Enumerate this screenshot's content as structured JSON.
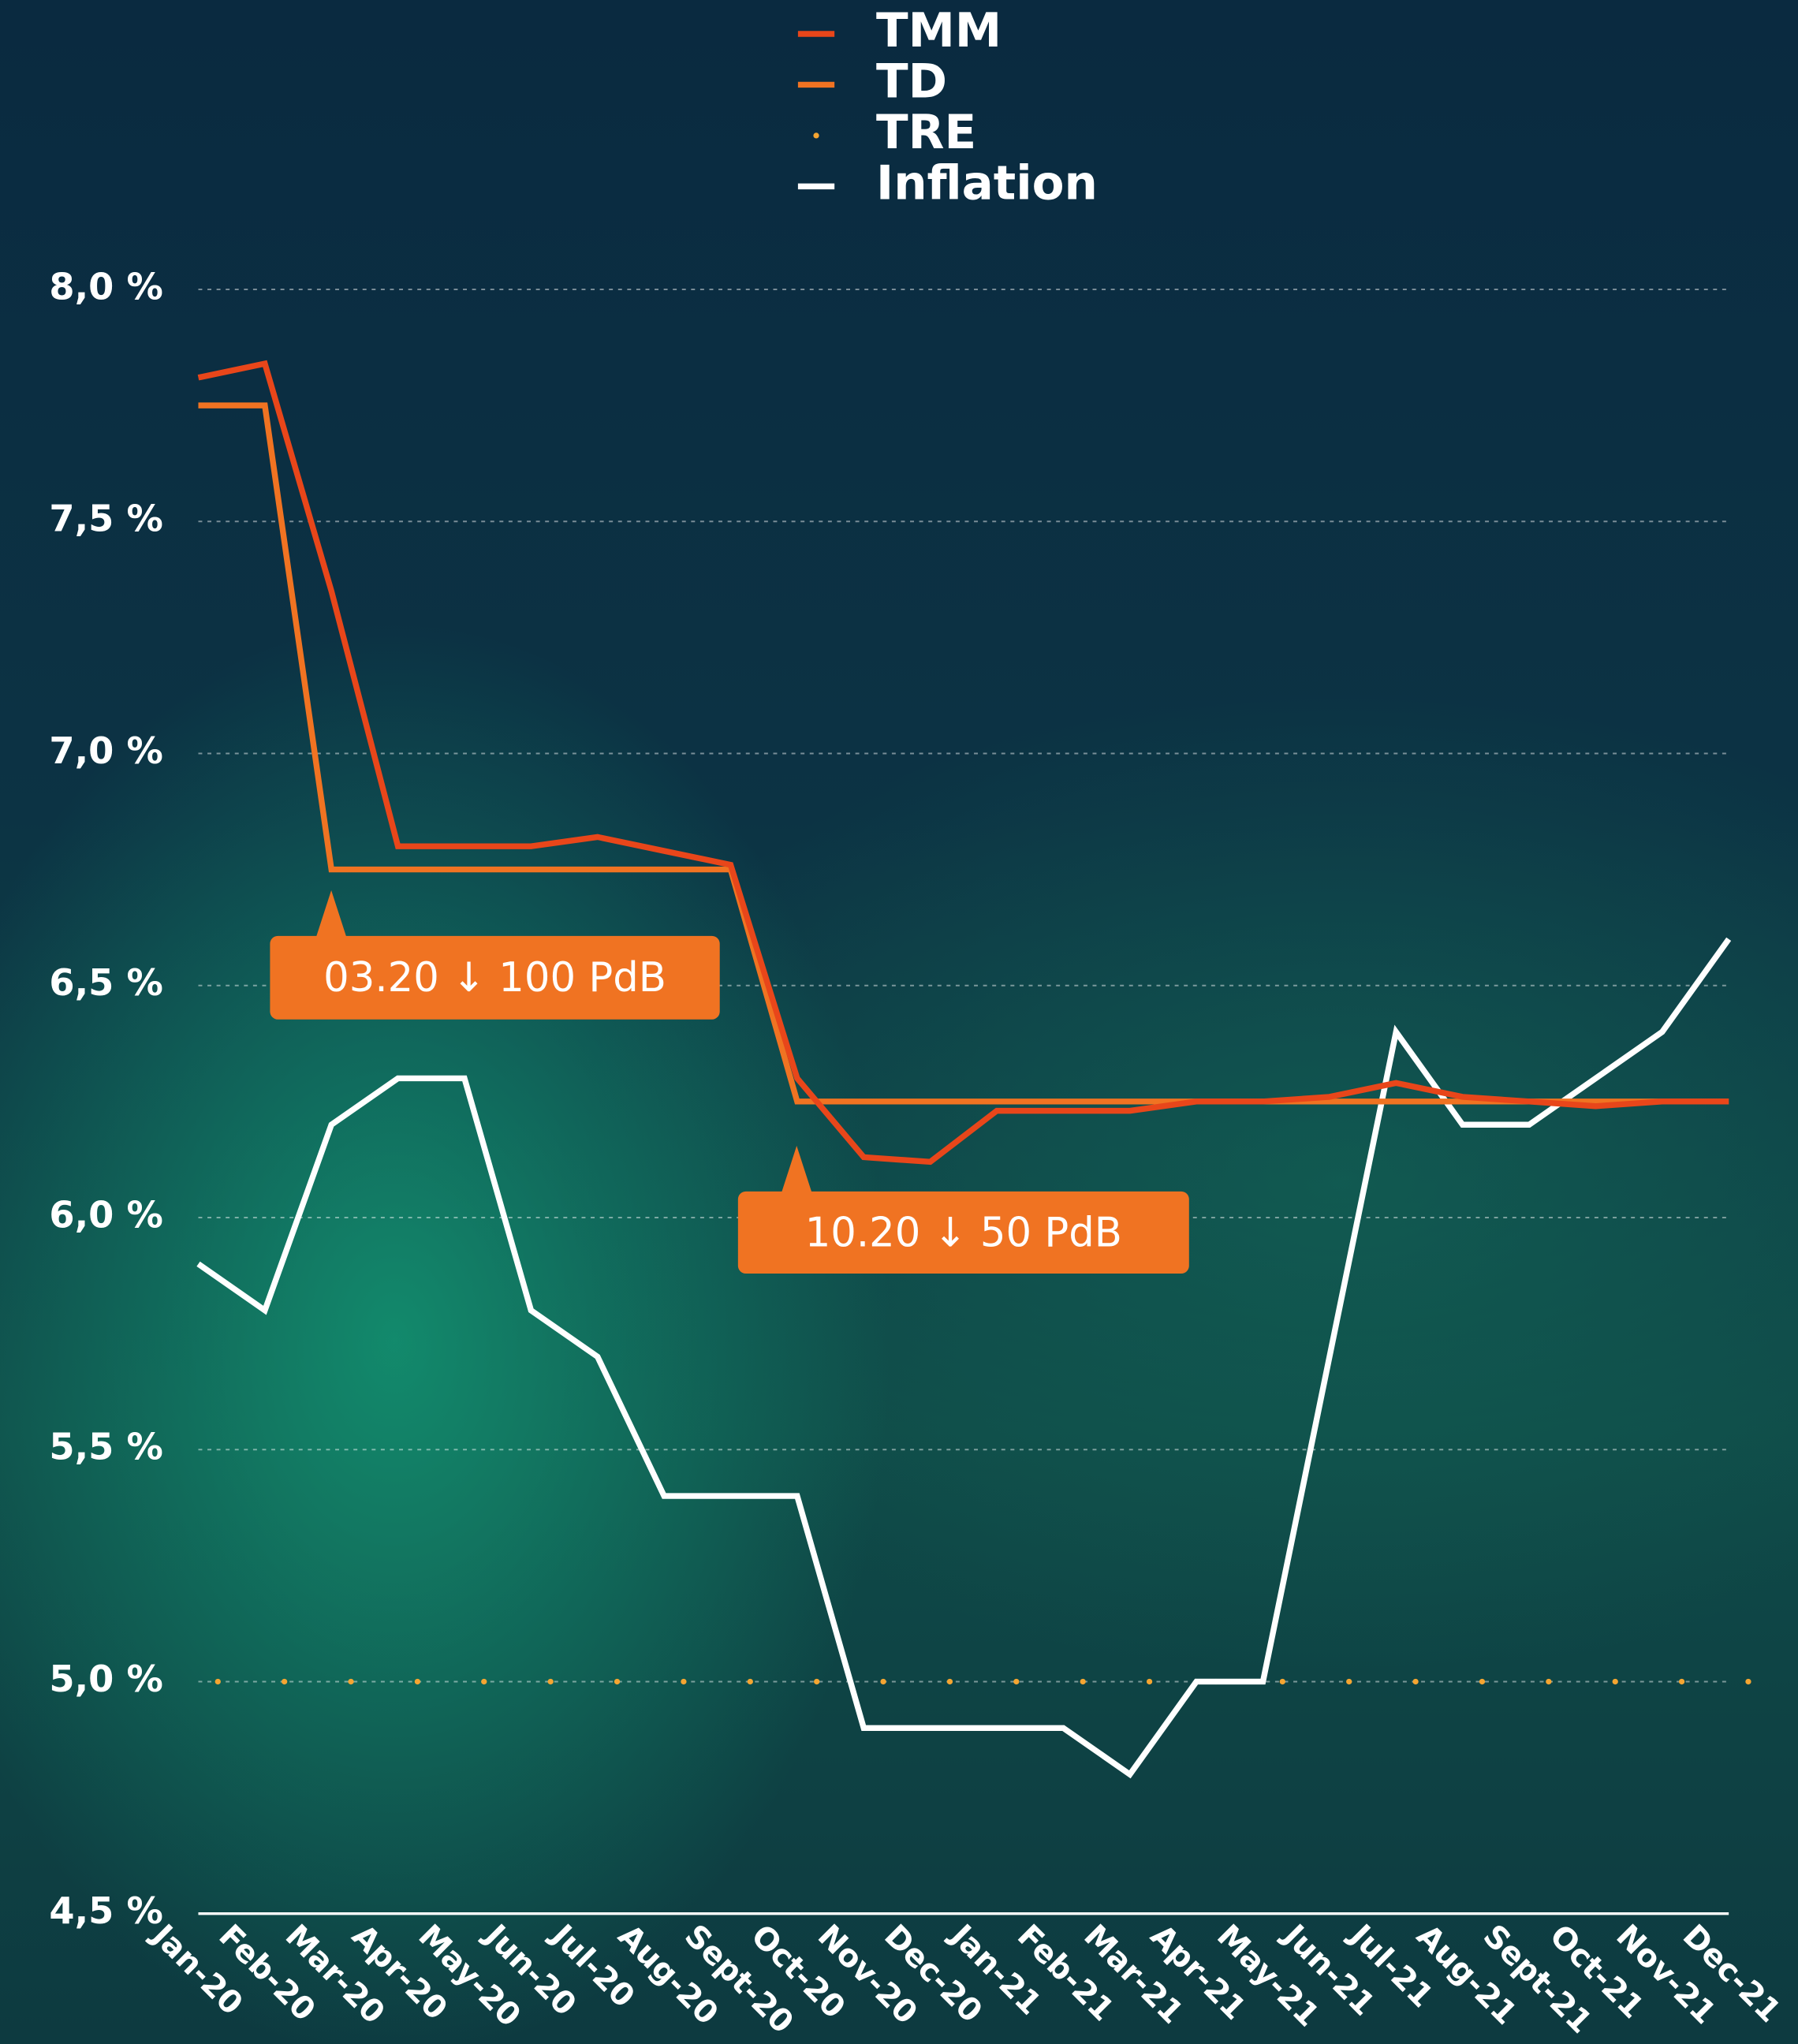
{
  "chart_data": {
    "type": "line",
    "categories": [
      "Jan-20",
      "Feb-20",
      "Mar-20",
      "Apr-20",
      "May-20",
      "Jun-20",
      "Jul-20",
      "Aug-20",
      "Sept-20",
      "Oct-20",
      "Nov-20",
      "Dec-20",
      "Jan-21",
      "Feb-21",
      "Mar-21",
      "Apr-21",
      "May-21",
      "Jun-21",
      "Jul-21",
      "Aug-21",
      "Sept-21",
      "Oct-21",
      "Nov-21",
      "Dec-21"
    ],
    "series": [
      {
        "name": "TMM",
        "color": "#e8461a",
        "values": [
          7.81,
          7.84,
          7.35,
          6.8,
          6.8,
          6.8,
          6.82,
          6.79,
          6.76,
          6.3,
          6.13,
          6.12,
          6.23,
          6.23,
          6.23,
          6.25,
          6.25,
          6.26,
          6.29,
          6.26,
          6.25,
          6.24,
          6.25,
          6.25
        ]
      },
      {
        "name": "TD",
        "color": "#f07322",
        "values": [
          7.75,
          7.75,
          6.75,
          6.75,
          6.75,
          6.75,
          6.75,
          6.75,
          6.75,
          6.25,
          6.25,
          6.25,
          6.25,
          6.25,
          6.25,
          6.25,
          6.25,
          6.25,
          6.25,
          6.25,
          6.25,
          6.25,
          6.25,
          6.25
        ]
      },
      {
        "name": "TRE",
        "color": "#f5a531",
        "style": "dotted",
        "values": [
          5,
          5,
          5,
          5,
          5,
          5,
          5,
          5,
          5,
          5,
          5,
          5,
          5,
          5,
          5,
          5,
          5,
          5,
          5,
          5,
          5,
          5,
          5,
          5
        ]
      },
      {
        "name": "Inflation",
        "color": "#ffffff",
        "values": [
          5.9,
          5.8,
          6.2,
          6.3,
          6.3,
          5.8,
          5.7,
          5.4,
          5.4,
          5.4,
          4.9,
          4.9,
          4.9,
          4.9,
          4.8,
          5.0,
          5.0,
          5.7,
          6.4,
          6.2,
          6.2,
          6.3,
          6.4,
          6.6
        ]
      }
    ],
    "ylim": [
      4.5,
      8.0
    ],
    "yticks": [
      {
        "value": 4.5,
        "label": "4,5 %"
      },
      {
        "value": 5.0,
        "label": "5,0 %"
      },
      {
        "value": 5.5,
        "label": "5,5 %"
      },
      {
        "value": 6.0,
        "label": "6,0 %"
      },
      {
        "value": 6.5,
        "label": "6,5 %"
      },
      {
        "value": 7.0,
        "label": "7,0 %"
      },
      {
        "value": 7.5,
        "label": "7,5 %"
      },
      {
        "value": 8.0,
        "label": "8,0 %"
      }
    ],
    "grid": true,
    "legend": "top",
    "annotations": [
      "03.20 ↓ 100 PdB",
      "10.20 ↓ 50 PdB"
    ],
    "annotation_color": "#f07322"
  }
}
